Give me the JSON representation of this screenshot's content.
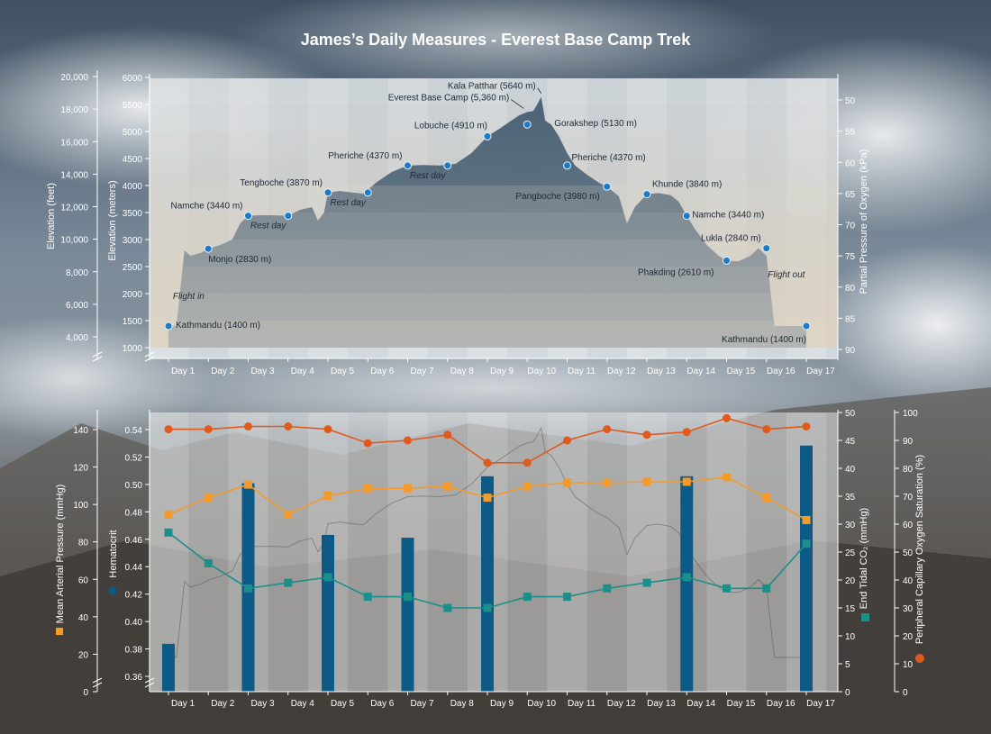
{
  "title": "James’s Daily Measures - Everest Base Camp Trek",
  "colors": {
    "bg_sky": "#4f6274",
    "panel": "#e9ecef",
    "band_light": "#d9c9b0",
    "mountain_dark": "#41586b",
    "marker_blue": "#1a7bc8",
    "hematocrit": "#0e5a87",
    "map": "#f39a2b",
    "etco2": "#1b8f8a",
    "spo2": "#e05a1c"
  },
  "chart_data": [
    {
      "type": "area",
      "title": "James’s Daily Measures - Everest Base Camp Trek",
      "days": [
        "Day 1",
        "Day 2",
        "Day 3",
        "Day 4",
        "Day 5",
        "Day 6",
        "Day 7",
        "Day 8",
        "Day 9",
        "Day 10",
        "Day 11",
        "Day 12",
        "Day 13",
        "Day 14",
        "Day 15",
        "Day 16",
        "Day 17"
      ],
      "ylabel_left_feet": "Elevation (feet)",
      "ylabel_left_meters": "Elevation (meters)",
      "ylabel_right": "Partial Pressure of Oxygen (kPa)",
      "ylim_meters": [
        800,
        6000
      ],
      "ticks_feet": [
        "20,000",
        "18,000",
        "16,000",
        "14,000",
        "12,000",
        "10,000",
        "8,000",
        "6,000",
        "4,000"
      ],
      "ticks_meters": [
        "6000",
        "5500",
        "5000",
        "4500",
        "4000",
        "3500",
        "3000",
        "2500",
        "2000",
        "1500",
        "1000"
      ],
      "ticks_kpa": [
        "50",
        "55",
        "60",
        "65",
        "70",
        "75",
        "80",
        "85",
        "90"
      ],
      "profile": [
        [
          0.0,
          1400
        ],
        [
          0.2,
          1400
        ],
        [
          0.4,
          2800
        ],
        [
          0.55,
          2700
        ],
        [
          0.8,
          2750
        ],
        [
          1.0,
          2830
        ],
        [
          1.3,
          2900
        ],
        [
          1.6,
          3000
        ],
        [
          1.8,
          3300
        ],
        [
          2.0,
          3440
        ],
        [
          2.3,
          3450
        ],
        [
          2.6,
          3450
        ],
        [
          3.0,
          3440
        ],
        [
          3.3,
          3550
        ],
        [
          3.6,
          3600
        ],
        [
          3.75,
          3350
        ],
        [
          3.9,
          3500
        ],
        [
          4.0,
          3870
        ],
        [
          4.3,
          3900
        ],
        [
          4.6,
          3870
        ],
        [
          4.9,
          3850
        ],
        [
          5.2,
          4050
        ],
        [
          5.6,
          4250
        ],
        [
          6.0,
          4370
        ],
        [
          6.4,
          4380
        ],
        [
          6.8,
          4370
        ],
        [
          7.2,
          4400
        ],
        [
          7.6,
          4600
        ],
        [
          8.0,
          4910
        ],
        [
          8.3,
          5050
        ],
        [
          8.6,
          5200
        ],
        [
          8.8,
          5300
        ],
        [
          9.0,
          5360
        ],
        [
          9.15,
          5380
        ],
        [
          9.25,
          5500
        ],
        [
          9.35,
          5640
        ],
        [
          9.45,
          5200
        ],
        [
          9.6,
          5130
        ],
        [
          9.8,
          4900
        ],
        [
          10.0,
          4600
        ],
        [
          10.2,
          4370
        ],
        [
          10.5,
          4200
        ],
        [
          10.8,
          4050
        ],
        [
          11.0,
          3980
        ],
        [
          11.3,
          3800
        ],
        [
          11.5,
          3300
        ],
        [
          11.7,
          3600
        ],
        [
          12.0,
          3840
        ],
        [
          12.3,
          3860
        ],
        [
          12.6,
          3820
        ],
        [
          12.8,
          3700
        ],
        [
          13.0,
          3440
        ],
        [
          13.2,
          3200
        ],
        [
          13.5,
          2900
        ],
        [
          13.8,
          2700
        ],
        [
          14.0,
          2610
        ],
        [
          14.3,
          2600
        ],
        [
          14.6,
          2700
        ],
        [
          14.8,
          2840
        ],
        [
          15.0,
          2700
        ],
        [
          15.2,
          1400
        ],
        [
          16.0,
          1400
        ]
      ],
      "markers": [
        {
          "x": 0,
          "y": 1400,
          "label": "Kathmandu (1400 m)",
          "anchor": "start"
        },
        {
          "x": 1,
          "y": 2830,
          "label": "Monjo (2830 m)",
          "anchor": "start"
        },
        {
          "x": 2,
          "y": 3440,
          "label": "Namche (3440 m)",
          "anchor": "end"
        },
        {
          "x": 3,
          "y": 3440,
          "label": "",
          "anchor": "start"
        },
        {
          "x": 4,
          "y": 3870,
          "label": "Tengboche (3870 m)",
          "anchor": "end"
        },
        {
          "x": 5,
          "y": 3870,
          "label": "",
          "anchor": "start"
        },
        {
          "x": 6,
          "y": 4370,
          "label": "Pheriche (4370 m)",
          "anchor": "end"
        },
        {
          "x": 7,
          "y": 4370,
          "label": "",
          "anchor": "start"
        },
        {
          "x": 8,
          "y": 4910,
          "label": "Lobuche (4910 m)",
          "anchor": "end"
        },
        {
          "x": 9,
          "y": 5130,
          "label": "Gorakshep (5130 m)",
          "anchor": "start"
        },
        {
          "x": 10,
          "y": 4370,
          "label": "Pheriche (4370 m)",
          "anchor": "start"
        },
        {
          "x": 11,
          "y": 3980,
          "label": "Pangboche (3980 m)",
          "anchor": "end"
        },
        {
          "x": 12,
          "y": 3840,
          "label": "Khunde (3840 m)",
          "anchor": "start"
        },
        {
          "x": 13,
          "y": 3440,
          "label": "Namche (3440 m)",
          "anchor": "start"
        },
        {
          "x": 14,
          "y": 2610,
          "label": "Phakding (2610 m)",
          "anchor": "end"
        },
        {
          "x": 15,
          "y": 2840,
          "label": "Lukla (2840 m)",
          "anchor": "end"
        },
        {
          "x": 16,
          "y": 1400,
          "label": "Kathmandu (1400 m)",
          "anchor": "end"
        }
      ],
      "annotations": [
        {
          "text": "Kala Patthar (5640 m)",
          "x": 9.35,
          "y": 5640,
          "kind": "peak"
        },
        {
          "text": "Everest Base Camp (5,360 m)",
          "x": 9.0,
          "y": 5360,
          "kind": "peak"
        },
        {
          "text": "Rest day",
          "x": 2.5,
          "y": 3440,
          "kind": "rest"
        },
        {
          "text": "Rest day",
          "x": 4.5,
          "y": 3870,
          "kind": "rest"
        },
        {
          "text": "Rest day",
          "x": 6.5,
          "y": 4370,
          "kind": "rest"
        },
        {
          "text": "Flight in",
          "x": 0.2,
          "y": 1900,
          "kind": "flight"
        },
        {
          "text": "Flight out",
          "x": 15.5,
          "y": 2300,
          "kind": "flight"
        }
      ]
    },
    {
      "type": "bar",
      "days": [
        "Day 1",
        "Day 2",
        "Day 3",
        "Day 4",
        "Day 5",
        "Day 6",
        "Day 7",
        "Day 8",
        "Day 9",
        "Day 10",
        "Day 11",
        "Day 12",
        "Day 13",
        "Day 14",
        "Day 15",
        "Day 16",
        "Day 17"
      ],
      "ylabel_map": "Mean Arterial Pressure (mmHg)",
      "ylabel_hct": "Hematocrit",
      "ylabel_etco2": "End Tidal CO₂ (mmHg)",
      "ylabel_spo2": "Peripheral Capillary Oxygen Saturation (%)",
      "ticks_map": [
        "140",
        "120",
        "100",
        "80",
        "60",
        "40",
        "20",
        "0"
      ],
      "ticks_hct": [
        "0.54",
        "0.52",
        "0.50",
        "0.48",
        "0.46",
        "0.44",
        "0.42",
        "0.40",
        "0.38",
        "0.36"
      ],
      "ticks_etco2": [
        "50",
        "45",
        "40",
        "35",
        "30",
        "25",
        "20",
        "15",
        "10",
        "5",
        "0"
      ],
      "ticks_spo2": [
        "100",
        "90",
        "80",
        "70",
        "60",
        "50",
        "40",
        "30",
        "20",
        "10",
        "0"
      ],
      "ylim_map": [
        0,
        150
      ],
      "ylim_hct": [
        0.35,
        0.55
      ],
      "ylim_etco2": [
        0,
        50
      ],
      "ylim_spo2": [
        0,
        100
      ],
      "series": [
        {
          "name": "Hematocrit",
          "type": "bar",
          "values": [
            0.383,
            null,
            0.498,
            null,
            0.461,
            null,
            0.459,
            null,
            0.503,
            null,
            null,
            null,
            null,
            0.503,
            null,
            null,
            0.525
          ]
        },
        {
          "name": "Mean Arterial Pressure",
          "type": "line",
          "values": [
            95,
            104,
            111,
            95,
            105,
            109,
            109,
            110,
            104,
            110,
            112,
            112,
            112.5,
            112.5,
            115,
            104,
            92
          ]
        },
        {
          "name": "End Tidal CO₂",
          "type": "line",
          "values": [
            28.5,
            23,
            18.5,
            19.5,
            20.5,
            17,
            17,
            15,
            15,
            17,
            17,
            18.5,
            19.5,
            20.5,
            18.5,
            18.5,
            26.5
          ]
        },
        {
          "name": "Peripheral Capillary Oxygen Saturation",
          "type": "line",
          "values": [
            94,
            94,
            95,
            95,
            94,
            89,
            90,
            92,
            82,
            82,
            90,
            94,
            92,
            93,
            98,
            94,
            95
          ]
        }
      ]
    }
  ]
}
